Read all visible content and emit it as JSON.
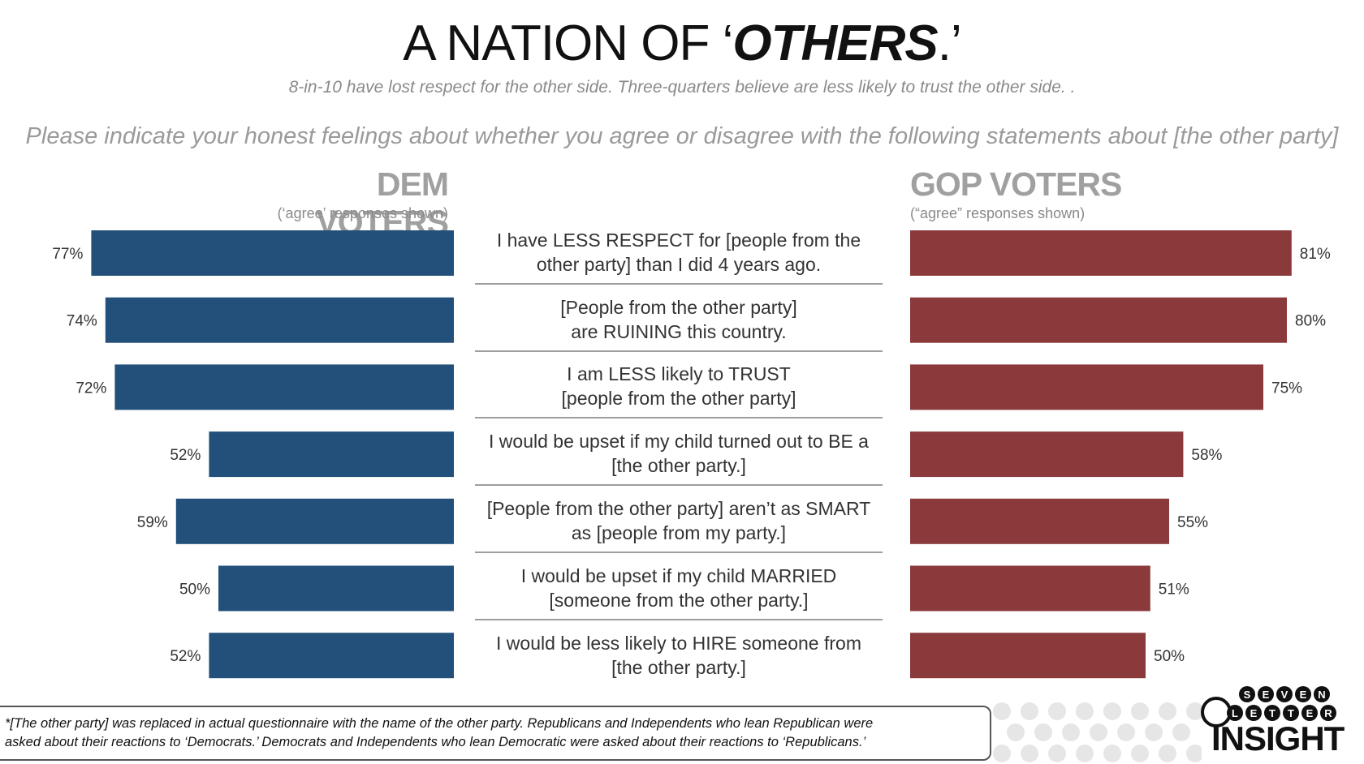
{
  "title": {
    "main": "A NATION OF ‘",
    "emphasis": "OTHERS",
    "end": ".’"
  },
  "subtitle": "8-in-10 have lost respect for the other side. Three-quarters believe are less likely to trust the other side. .",
  "question": "Please indicate your honest feelings about whether you agree or disagree with the following statements about [the other party]",
  "footnote": {
    "line1": "*[The other party] was replaced in actual questionnaire with the name of the other party.  Republicans and Independents who lean Republican were",
    "line2": "asked about their reactions to ‘Democrats.’  Democrats and Independents who lean Democratic were asked about their reactions to ‘Republicans.’"
  },
  "logo": {
    "top": "SEVEN",
    "middle": "LETTER",
    "bottom": "INSIGHT"
  },
  "chart_data": {
    "type": "bar",
    "categories": [
      [
        "I have LESS RESPECT for [people from the",
        "other party] than I did 4 years ago."
      ],
      [
        "[People from the other party]",
        "are RUINING this country."
      ],
      [
        "I am LESS likely to TRUST",
        "[people from the other party]"
      ],
      [
        "I would be upset if my child turned out to BE a",
        "[the other party.]"
      ],
      [
        "[People from the other party] aren’t as SMART",
        "as [people from my party.]"
      ],
      [
        "I would be upset if my child MARRIED",
        "[someone from the other party.]"
      ],
      [
        "I would be less likely to HIRE someone from",
        "[the other party.]"
      ]
    ],
    "series": [
      {
        "name": "DEM VOTERS",
        "note": "(‘agree’ responses shown)",
        "color": "#22507a",
        "values": [
          77,
          74,
          72,
          52,
          59,
          50,
          52
        ],
        "labels": [
          "77%",
          "74%",
          "72%",
          "52%",
          "59%",
          "50%",
          "52%"
        ]
      },
      {
        "name": "GOP VOTERS",
        "note": "(“agree” responses shown)",
        "color": "#8b3a3c",
        "values": [
          81,
          80,
          75,
          58,
          55,
          51,
          50
        ],
        "labels": [
          "81%",
          "80%",
          "75%",
          "58%",
          "55%",
          "51%",
          "50%"
        ]
      }
    ],
    "xlim": [
      0,
      100
    ],
    "unit": "%"
  }
}
